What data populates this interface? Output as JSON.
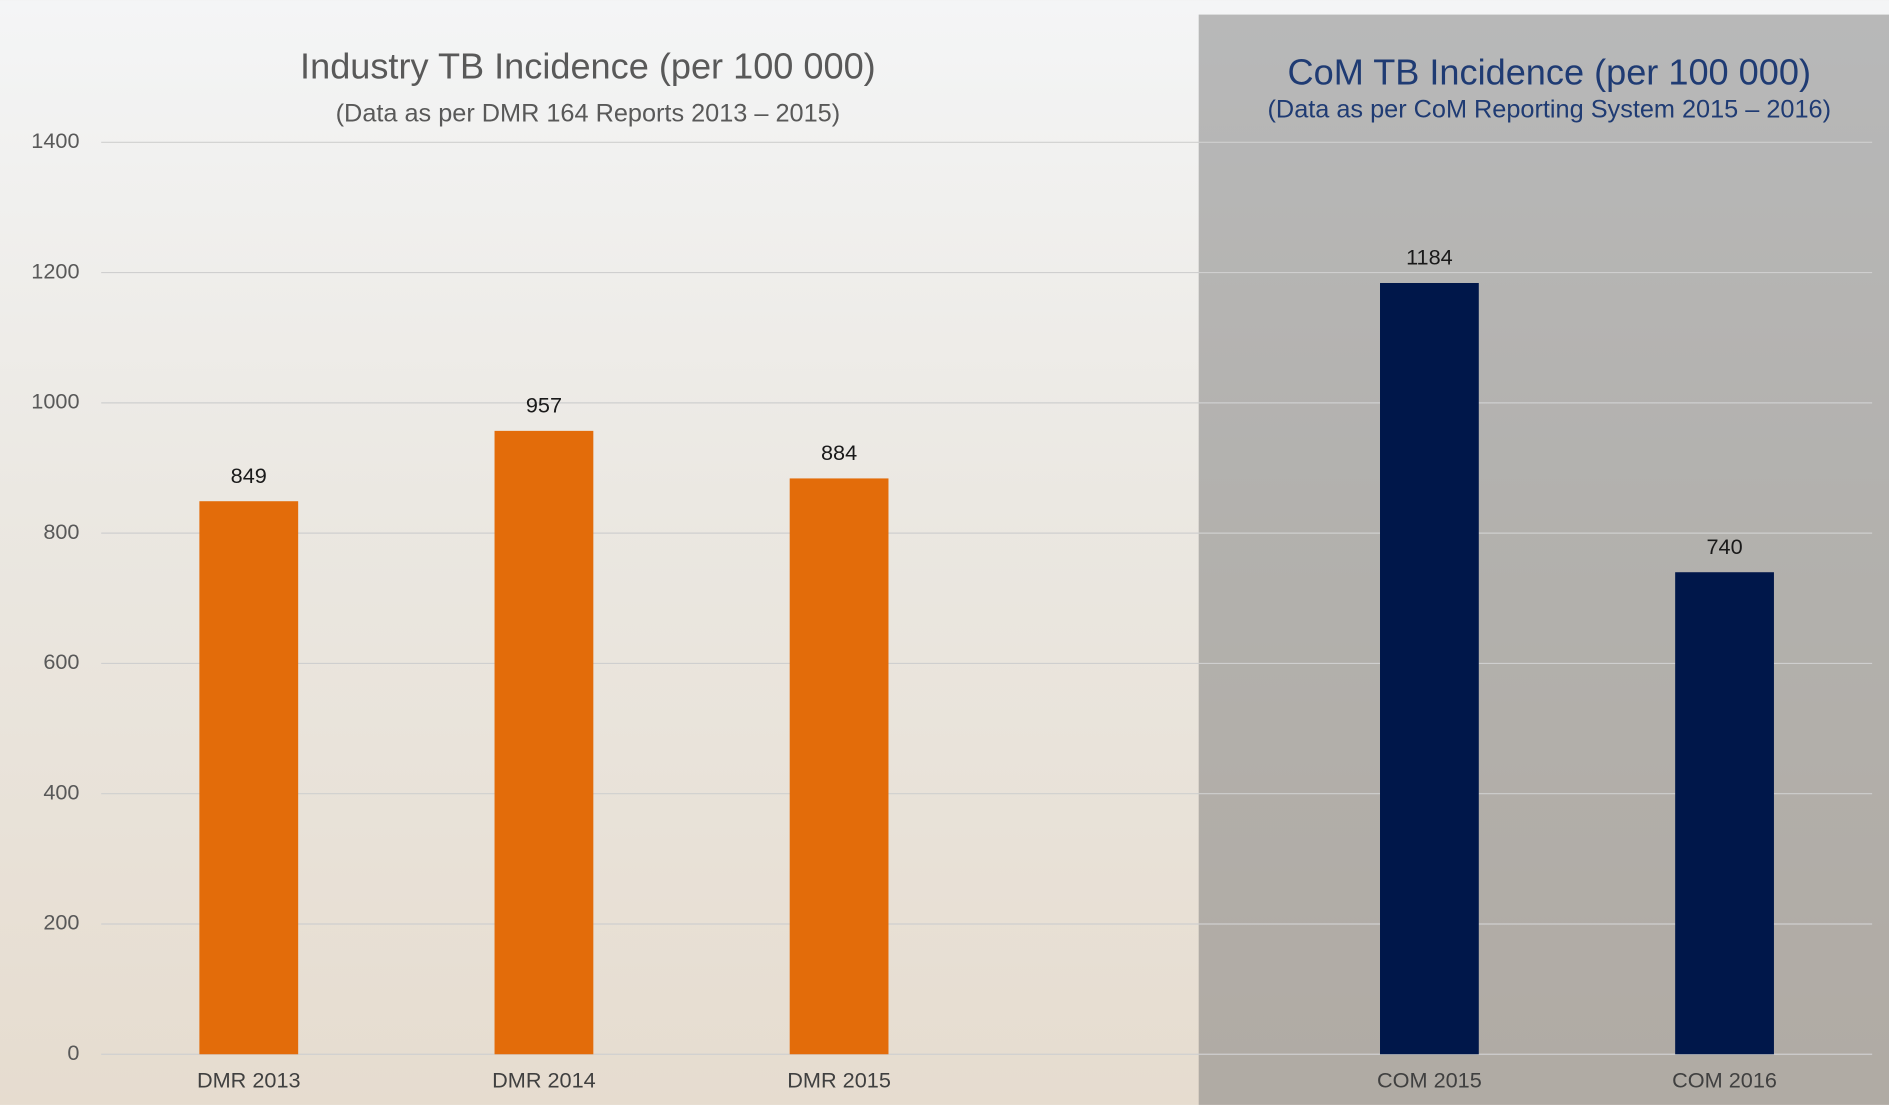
{
  "chart_data": {
    "type": "bar",
    "panels": [
      {
        "title": "Industry TB Incidence (per 100 000)",
        "subtitle": "(Data as per DMR 164 Reports 2013 – 2015)",
        "color": "#595959",
        "subtitle_color": "#595959"
      },
      {
        "title": "CoM TB Incidence (per 100 000)",
        "subtitle": "(Data as per CoM Reporting System 2015 – 2016)",
        "color": "#1f3b73",
        "subtitle_color": "#1f3b73"
      }
    ],
    "categories": [
      "DMR 2013",
      "DMR 2014",
      "DMR 2015",
      null,
      "COM 2015",
      "COM 2016"
    ],
    "values": [
      849,
      957,
      884,
      null,
      1184,
      740
    ],
    "colors": [
      "#e36c0a",
      "#e36c0a",
      "#e36c0a",
      null,
      "#00174a",
      "#00174a"
    ],
    "ylim": [
      0,
      1400
    ],
    "yticks": [
      0,
      200,
      400,
      600,
      800,
      1000,
      1200,
      1400
    ],
    "grid": true
  }
}
